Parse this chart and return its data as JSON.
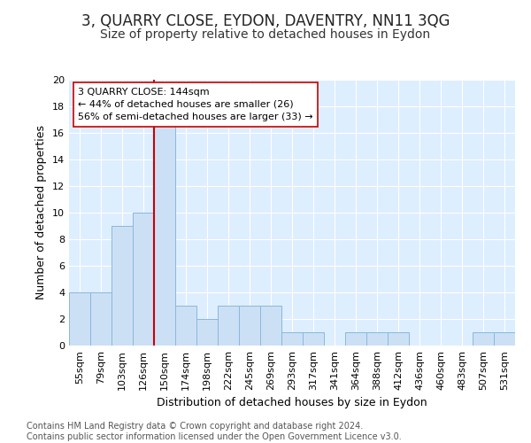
{
  "title": "3, QUARRY CLOSE, EYDON, DAVENTRY, NN11 3QG",
  "subtitle": "Size of property relative to detached houses in Eydon",
  "xlabel": "Distribution of detached houses by size in Eydon",
  "ylabel": "Number of detached properties",
  "categories": [
    "55sqm",
    "79sqm",
    "103sqm",
    "126sqm",
    "150sqm",
    "174sqm",
    "198sqm",
    "222sqm",
    "245sqm",
    "269sqm",
    "293sqm",
    "317sqm",
    "341sqm",
    "364sqm",
    "388sqm",
    "412sqm",
    "436sqm",
    "460sqm",
    "483sqm",
    "507sqm",
    "531sqm"
  ],
  "values": [
    4,
    4,
    9,
    10,
    17,
    3,
    2,
    3,
    3,
    3,
    1,
    1,
    0,
    1,
    1,
    1,
    0,
    0,
    0,
    1,
    1
  ],
  "bar_color": "#cce0f5",
  "bar_edge_color": "#89b8db",
  "property_line_color": "#cc0000",
  "annotation_text": "3 QUARRY CLOSE: 144sqm\n← 44% of detached houses are smaller (26)\n56% of semi-detached houses are larger (33) →",
  "annotation_box_color": "#ffffff",
  "annotation_box_edge": "#cc0000",
  "ylim": [
    0,
    20
  ],
  "yticks": [
    0,
    2,
    4,
    6,
    8,
    10,
    12,
    14,
    16,
    18,
    20
  ],
  "background_color": "#ddeeff",
  "grid_color": "#ffffff",
  "footer_line1": "Contains HM Land Registry data © Crown copyright and database right 2024.",
  "footer_line2": "Contains public sector information licensed under the Open Government Licence v3.0.",
  "title_fontsize": 12,
  "subtitle_fontsize": 10,
  "annotation_fontsize": 8,
  "axis_label_fontsize": 9,
  "tick_fontsize": 8,
  "footer_fontsize": 7
}
